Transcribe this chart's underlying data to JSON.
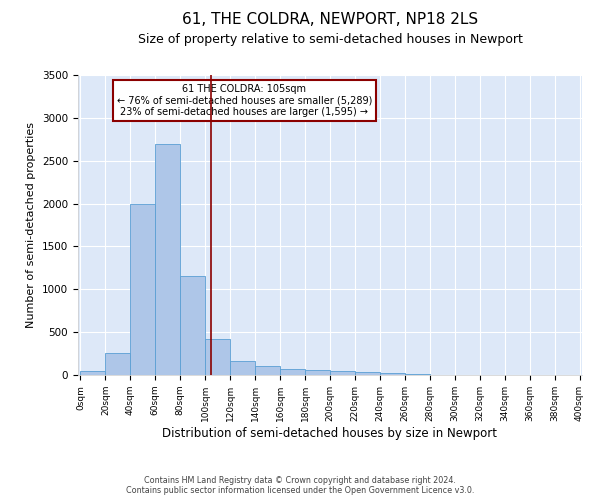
{
  "title": "61, THE COLDRA, NEWPORT, NP18 2LS",
  "subtitle": "Size of property relative to semi-detached houses in Newport",
  "xlabel": "Distribution of semi-detached houses by size in Newport",
  "ylabel": "Number of semi-detached properties",
  "bin_labels": [
    "0sqm",
    "20sqm",
    "40sqm",
    "60sqm",
    "80sqm",
    "100sqm",
    "120sqm",
    "140sqm",
    "160sqm",
    "180sqm",
    "200sqm",
    "220sqm",
    "240sqm",
    "260sqm",
    "280sqm",
    "300sqm",
    "320sqm",
    "340sqm",
    "360sqm",
    "380sqm",
    "400sqm"
  ],
  "bin_edges": [
    0,
    20,
    40,
    60,
    80,
    100,
    120,
    140,
    160,
    180,
    200,
    220,
    240,
    260,
    280,
    300,
    320,
    340,
    360,
    380,
    400
  ],
  "bar_heights": [
    50,
    260,
    2000,
    2700,
    1150,
    420,
    160,
    100,
    70,
    55,
    50,
    30,
    20,
    10,
    5,
    5,
    5,
    3,
    1,
    0
  ],
  "bar_color": "#aec6e8",
  "bar_edge_color": "#5a9fd4",
  "property_sqm": 105,
  "vline_color": "#8b0000",
  "annotation_text": "61 THE COLDRA: 105sqm\n← 76% of semi-detached houses are smaller (5,289)\n23% of semi-detached houses are larger (1,595) →",
  "annotation_box_edge_color": "#8b0000",
  "annotation_box_face_color": "#ffffff",
  "ylim": [
    0,
    3500
  ],
  "yticks": [
    0,
    500,
    1000,
    1500,
    2000,
    2500,
    3000,
    3500
  ],
  "background_color": "#dde8f8",
  "grid_color": "#ffffff",
  "footer_text": "Contains HM Land Registry data © Crown copyright and database right 2024.\nContains public sector information licensed under the Open Government Licence v3.0.",
  "title_fontsize": 11,
  "subtitle_fontsize": 9,
  "xlabel_fontsize": 8.5,
  "ylabel_fontsize": 8
}
